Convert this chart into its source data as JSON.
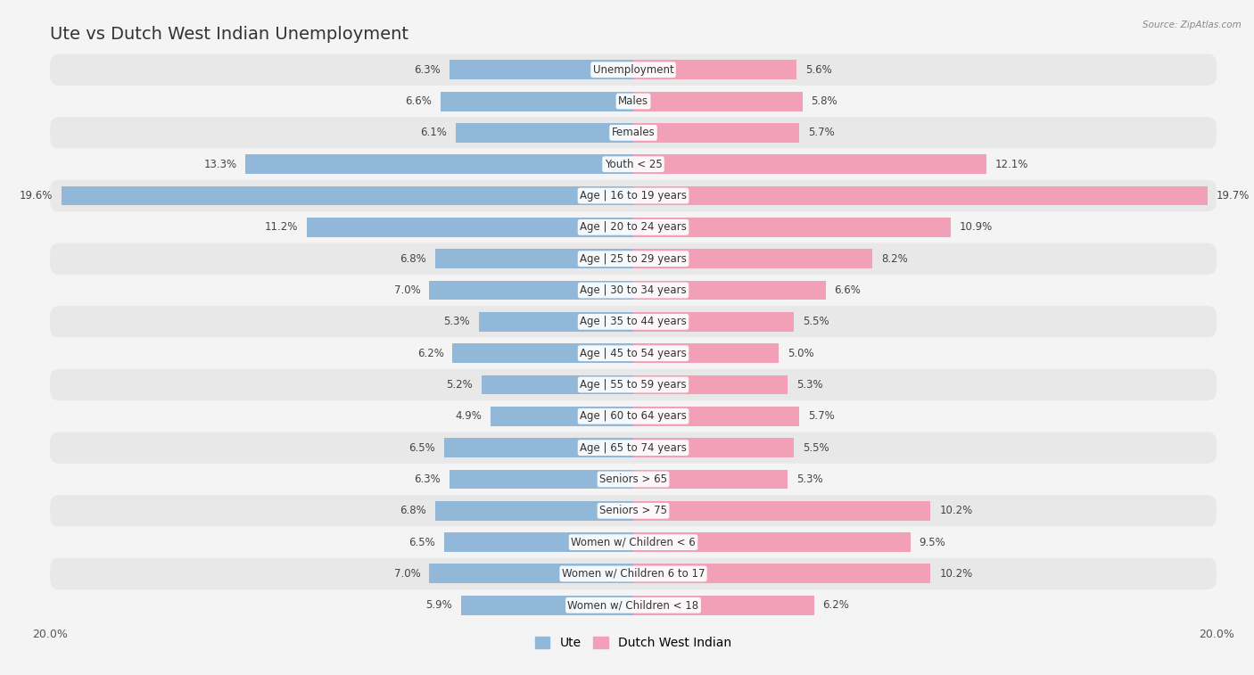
{
  "title": "Ute vs Dutch West Indian Unemployment",
  "source": "Source: ZipAtlas.com",
  "categories": [
    "Unemployment",
    "Males",
    "Females",
    "Youth < 25",
    "Age | 16 to 19 years",
    "Age | 20 to 24 years",
    "Age | 25 to 29 years",
    "Age | 30 to 34 years",
    "Age | 35 to 44 years",
    "Age | 45 to 54 years",
    "Age | 55 to 59 years",
    "Age | 60 to 64 years",
    "Age | 65 to 74 years",
    "Seniors > 65",
    "Seniors > 75",
    "Women w/ Children < 6",
    "Women w/ Children 6 to 17",
    "Women w/ Children < 18"
  ],
  "ute_values": [
    6.3,
    6.6,
    6.1,
    13.3,
    19.6,
    11.2,
    6.8,
    7.0,
    5.3,
    6.2,
    5.2,
    4.9,
    6.5,
    6.3,
    6.8,
    6.5,
    7.0,
    5.9
  ],
  "dutch_values": [
    5.6,
    5.8,
    5.7,
    12.1,
    19.7,
    10.9,
    8.2,
    6.6,
    5.5,
    5.0,
    5.3,
    5.7,
    5.5,
    5.3,
    10.2,
    9.5,
    10.2,
    6.2
  ],
  "ute_color": "#92b8d9",
  "dutch_color": "#f2a0b8",
  "ute_label": "Ute",
  "dutch_label": "Dutch West Indian",
  "max_val": 20.0,
  "bar_height": 0.62,
  "bg_color": "#f4f4f4",
  "row_color_even": "#e8e8e8",
  "row_color_odd": "#f4f4f4",
  "title_fontsize": 14,
  "cat_fontsize": 8.5,
  "value_fontsize": 8.5,
  "axis_fontsize": 9,
  "legend_fontsize": 10
}
